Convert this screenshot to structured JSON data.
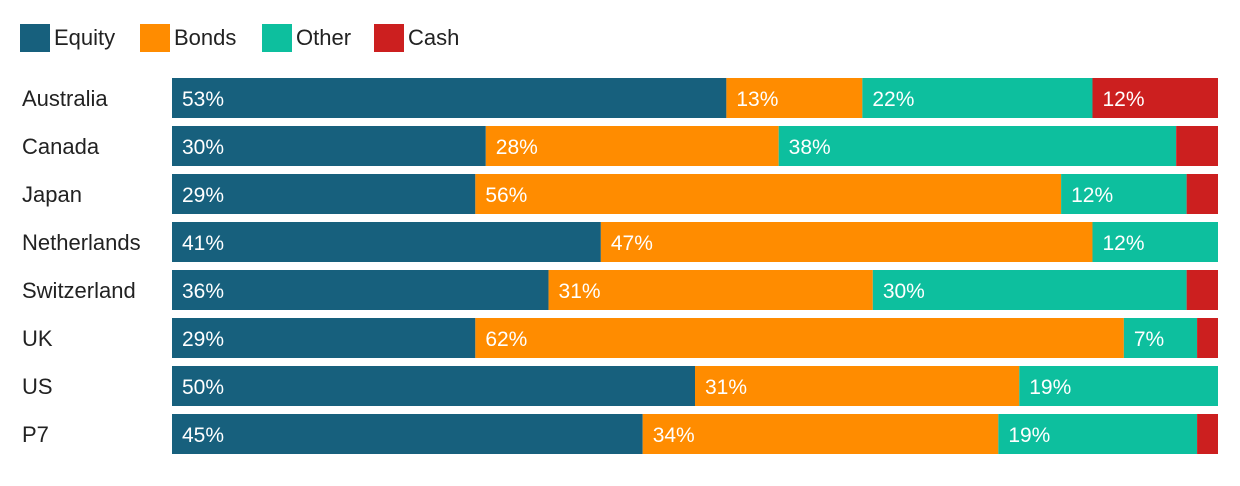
{
  "chart_data": {
    "type": "bar",
    "orientation": "horizontal",
    "stacked": true,
    "legend": "top-left",
    "grid": false,
    "xlim": [
      0,
      100
    ],
    "categories": [
      "Australia",
      "Canada",
      "Japan",
      "Netherlands",
      "Switzerland",
      "UK",
      "US",
      "P7"
    ],
    "series": [
      {
        "name": "Equity",
        "color": "#17607d",
        "values": [
          53,
          30,
          29,
          41,
          36,
          29,
          50,
          45
        ],
        "labels": [
          "53%",
          "30%",
          "29%",
          "41%",
          "36%",
          "29%",
          "50%",
          "45%"
        ]
      },
      {
        "name": "Bonds",
        "color": "#ff8c00",
        "values": [
          13,
          28,
          56,
          47,
          31,
          62,
          31,
          34
        ],
        "labels": [
          "13%",
          "28%",
          "56%",
          "47%",
          "31%",
          "62%",
          "31%",
          "34%"
        ]
      },
      {
        "name": "Other",
        "color": "#0dbf9e",
        "values": [
          22,
          38,
          12,
          12,
          30,
          7,
          19,
          19
        ],
        "labels": [
          "22%",
          "38%",
          "12%",
          "12%",
          "30%",
          "7%",
          "19%",
          "19%"
        ]
      },
      {
        "name": "Cash",
        "color": "#cc1f1f",
        "values": [
          12,
          4,
          3,
          0,
          3,
          2,
          0,
          2
        ],
        "labels": [
          "12%",
          "",
          "",
          "",
          "",
          "",
          "",
          ""
        ]
      }
    ]
  }
}
